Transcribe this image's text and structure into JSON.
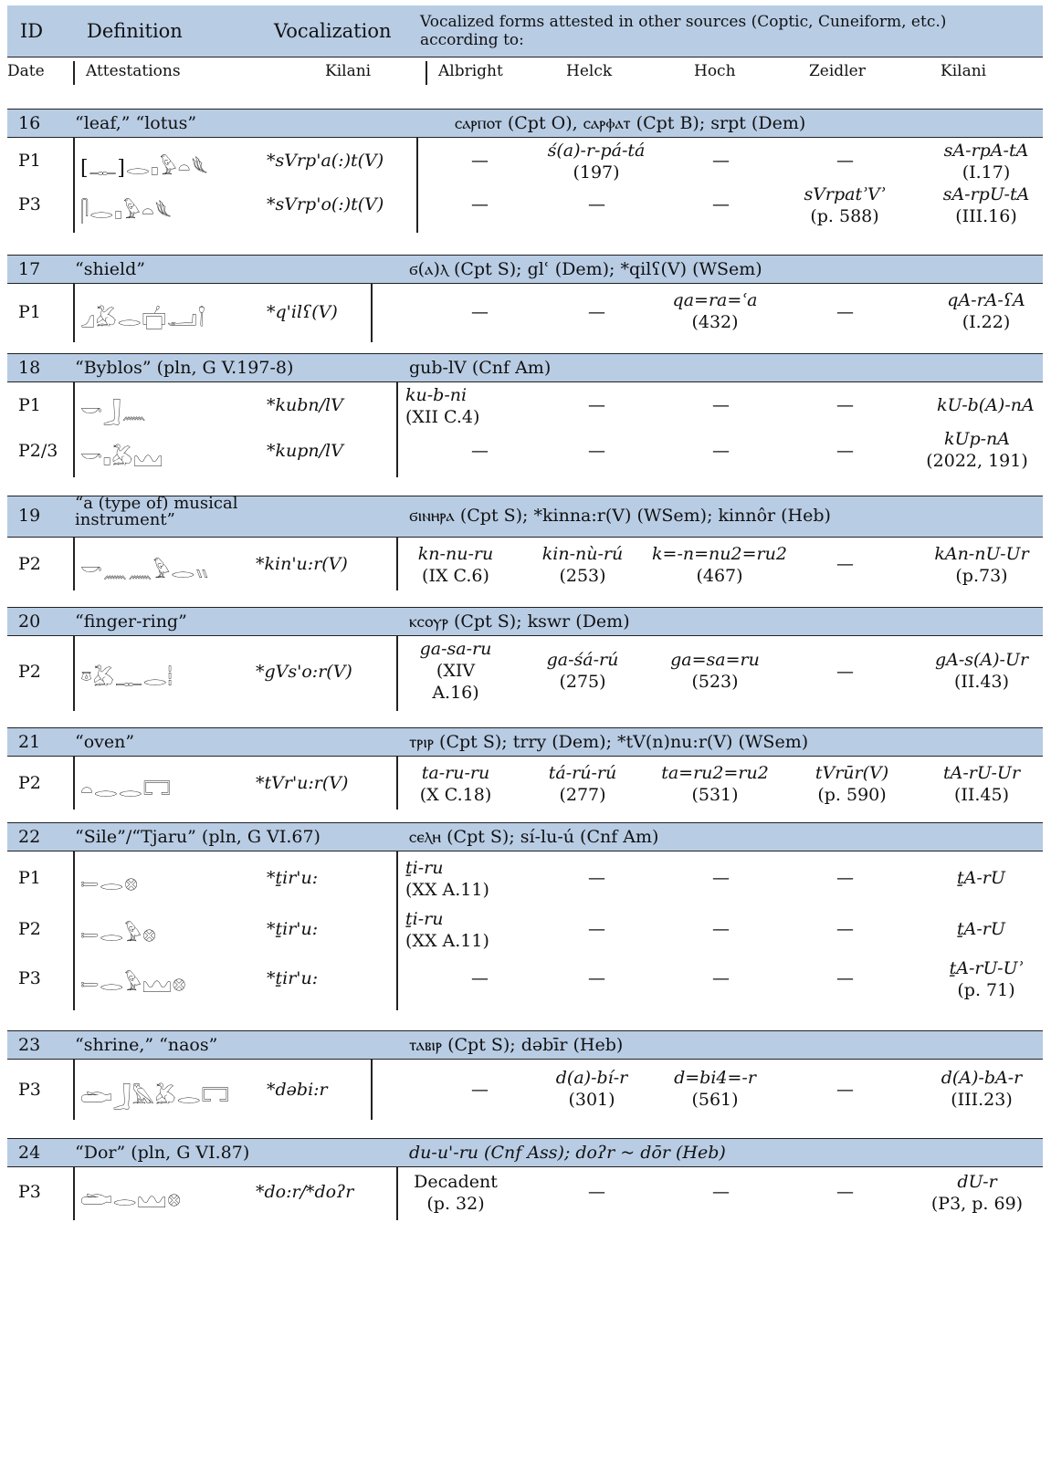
{
  "header": {
    "id": "ID",
    "definition": "Definition",
    "vocalization": "Vocalization",
    "other_sources": "Vocalized forms attested in other sources (Coptic, Cuneiform, etc.) according to:",
    "date": "Date",
    "attestations": "Attestations",
    "kilani": "Kilani",
    "albright": "Albright",
    "helck": "Helck",
    "hoch": "Hoch",
    "zeidler": "Zeidler",
    "kilani2": "Kilani"
  },
  "entries": [
    {
      "id": "16",
      "definition": "“leaf,” “lotus”",
      "refs": "ⲥⲁⲣⲡⲟⲧ (Cpt O), ⲥⲁⲣⲫⲁⲧ (Cpt B); srpt (Dem)",
      "rows": [
        {
          "date": "P1",
          "hiero": "[𓊃]𓂋𓊪𓅱𓏏𓆰",
          "voc": "*sVrp'a(:)t(V)",
          "albright": "—",
          "helck": "ś(a)-r-pá-tá",
          "helck2": "(197)",
          "hoch": "—",
          "zeidler": "—",
          "kilani": "sA-rpA-tA",
          "kilani2": "(I.17)"
        },
        {
          "date": "P3",
          "hiero": "𓋴𓂋𓊪𓅱𓏏𓆰",
          "voc": "*sVrp'o(:)t(V)",
          "albright": "—",
          "helck": "—",
          "hoch": "—",
          "zeidler": "sVrpatʾVʾ",
          "zeidler2": "(p. 588)",
          "kilani": "sA-rpU-tA",
          "kilani2": "(III.16)"
        }
      ]
    },
    {
      "id": "17",
      "definition": "“shield”",
      "refs": "ϭ(ⲁ)ⲗ (Cpt S); glʿ (Dem); *qilʕ(V) (WSem)",
      "rows": [
        {
          "date": "P1",
          "hiero": "𓈎𓅷𓂋𓐠𓂝𓌉",
          "voc": "*q'ilʕ(V)",
          "albright": "—",
          "helck": "—",
          "hoch": "qa=ra=ʿa",
          "hoch2": "(432)",
          "zeidler": "—",
          "kilani": "qA-rA-ʕA",
          "kilani2": "(I.22)"
        }
      ]
    },
    {
      "id": "18",
      "definition": "“Byblos” (pln, G V.197-8)",
      "refs": "gub-lV (Cnf Am)",
      "rows": [
        {
          "date": "P1",
          "hiero": "𓎡𓃀𓈖",
          "voc": "*kubn/lV",
          "albright": "ku-b-ni",
          "albright2": "(XII C.4)",
          "helck": "—",
          "hoch": "—",
          "zeidler": "—",
          "kilani": "kU-b(A)-nA"
        },
        {
          "date": "P2/3",
          "hiero": "𓎡𓊪𓅷𓈉",
          "voc": "*kupn/lV",
          "albright": "—",
          "helck": "—",
          "hoch": "—",
          "zeidler": "—",
          "kilani": "kUp-nA",
          "kilani2": "(2022, 191)"
        }
      ]
    },
    {
      "id": "19",
      "definition": "“a (type of) musical instrument”",
      "refs": "ϭⲓⲛⲏⲣⲁ (Cpt S); *kinna:r(V) (WSem); kinnôr (Heb)",
      "rows": [
        {
          "date": "P2",
          "hiero": "𓎡𓈖𓈖𓅱𓂋𓏭",
          "voc": "*kin'u:r(V)",
          "albright": "kn-nu-ru",
          "albright2": "(IX C.6)",
          "helck": "kin-nù-rú",
          "helck2": "(253)",
          "hoch": "k=-n=nu2=ru2",
          "hoch2": "(467)",
          "zeidler": "—",
          "kilani": "kAn-nU-Ur",
          "kilani2": "(p.73)"
        }
      ]
    },
    {
      "id": "20",
      "definition": "“finger-ring”",
      "refs": "ⲕⲥⲟⲩⲣ (Cpt S); kswr (Dem)",
      "rows": [
        {
          "date": "P2",
          "hiero": "𓎼𓅷𓊃𓂋𓏪",
          "voc": "*gVs'o:r(V)",
          "albright": "ga-sa-ru",
          "albright2": "(XIV",
          "albright3": "A.16)",
          "helck": "ga-śá-rú",
          "helck2": "(275)",
          "hoch": "ga=sa=ru",
          "hoch2": "(523)",
          "zeidler": "—",
          "kilani": "gA-s(A)-Ur",
          "kilani2": "(II.43)"
        }
      ]
    },
    {
      "id": "21",
      "definition": "“oven”",
      "refs": "ⲧⲣⲓⲣ (Cpt S); trry (Dem); *tV(n)nu:r(V) (WSem)",
      "rows": [
        {
          "date": "P2",
          "hiero": "𓏏𓂋𓂋𓉐",
          "voc": "*tVr'u:r(V)",
          "albright": "ta-ru-ru",
          "albright2": "(X C.18)",
          "helck": "tá-rú-rú",
          "helck2": "(277)",
          "hoch": "ta=ru2=ru2",
          "hoch2": "(531)",
          "zeidler": "tVrūr(V)",
          "zeidler2": "(p. 590)",
          "kilani": "tA-rU-Ur",
          "kilani2": "(II.45)"
        }
      ]
    },
    {
      "id": "22",
      "definition": "“Sile”/“Tjaru” (pln, G VI.67)",
      "refs": "ⲥⲉⲗⲏ (Cpt S); sí-lu-ú (Cnf Am)",
      "rows": [
        {
          "date": "P1",
          "hiero": "𓍿𓂋𓊖",
          "voc": "*ṯir'u:",
          "albright": "ṯi-ru",
          "albright2": "(XX A.11)",
          "helck": "—",
          "hoch": "—",
          "zeidler": "—",
          "kilani": "ṯA-rU"
        },
        {
          "date": "P2",
          "hiero": "𓍿𓂋𓅱𓊖",
          "voc": "*ṯir'u:",
          "albright": "ṯi-ru",
          "albright2": "(XX A.11)",
          "helck": "—",
          "hoch": "—",
          "zeidler": "—",
          "kilani": "ṯA-rU"
        },
        {
          "date": "P3",
          "hiero": "𓍿𓂋𓅱𓈉𓊖",
          "voc": "*ṯir'u:",
          "albright": "—",
          "helck": "—",
          "hoch": "—",
          "zeidler": "—",
          "kilani": "ṯA-rU-Uʾ",
          "kilani2": "(p. 71)"
        }
      ]
    },
    {
      "id": "23",
      "definition": "“shrine,” “naos”",
      "refs": "ⲧⲁⲃⲓⲣ (Cpt S); dəbīr (Heb)",
      "rows": [
        {
          "date": "P3",
          "hiero": "𓂧𓃀𓅓𓅷𓂋𓉐",
          "voc": "*dəbi:r",
          "albright": "—",
          "helck": "d(a)-bí-r",
          "helck2": "(301)",
          "hoch": "d=bi4=-r",
          "hoch2": "(561)",
          "zeidler": "—",
          "kilani": "d(A)-bA-r",
          "kilani2": "(III.23)"
        }
      ]
    },
    {
      "id": "24",
      "definition": "“Dor” (pln, G VI.87)",
      "refs": "du-u'-ru (Cnf Ass); doʔr ~ dōr  (Heb)",
      "rows": [
        {
          "date": "P3",
          "hiero": "𓂧𓂋𓈉𓊖",
          "voc": "*do:r/*doʔr",
          "albright": "Decadent",
          "albright2": "(p. 32)",
          "helck": "—",
          "hoch": "—",
          "zeidler": "—",
          "kilani": "dU-r",
          "kilani2": "(P3, p. 69)"
        }
      ]
    }
  ]
}
